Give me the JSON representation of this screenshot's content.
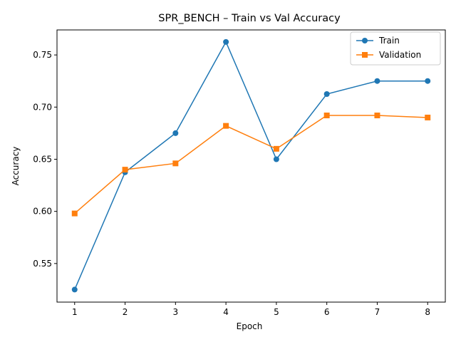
{
  "chart_data": {
    "type": "line",
    "title": "SPR_BENCH – Train vs Val Accuracy",
    "xlabel": "Epoch",
    "ylabel": "Accuracy",
    "x": [
      1,
      2,
      3,
      4,
      5,
      6,
      7,
      8
    ],
    "xlim": [
      0.65,
      8.35
    ],
    "ylim": [
      0.513,
      0.774
    ],
    "xticks": [
      1,
      2,
      3,
      4,
      5,
      6,
      7,
      8
    ],
    "yticks": [
      0.55,
      0.6,
      0.65,
      0.7,
      0.75
    ],
    "ytick_labels": [
      "0.55",
      "0.60",
      "0.65",
      "0.70",
      "0.75"
    ],
    "grid": false,
    "legend_position": "top-right",
    "series": [
      {
        "name": "Train",
        "marker": "circle",
        "color": "#1f77b4",
        "values": [
          0.525,
          0.6375,
          0.675,
          0.7625,
          0.65,
          0.7125,
          0.725,
          0.725
        ]
      },
      {
        "name": "Validation",
        "marker": "square",
        "color": "#ff7f0e",
        "values": [
          0.598,
          0.64,
          0.646,
          0.682,
          0.66,
          0.692,
          0.692,
          0.69
        ]
      }
    ]
  }
}
